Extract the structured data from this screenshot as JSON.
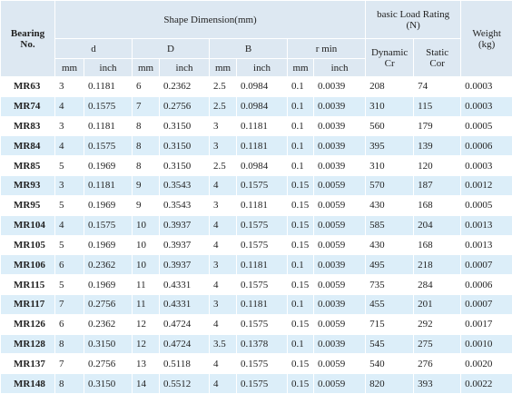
{
  "header": {
    "bearing": [
      "Bearing",
      "No."
    ],
    "shape": "Shape Dimension(mm)",
    "rating": [
      "basic Load Rating",
      "(N)"
    ],
    "weight": [
      "Weight",
      "(kg)"
    ],
    "dims": [
      "d",
      "D",
      "B",
      "r min"
    ],
    "units": [
      "mm",
      "inch"
    ],
    "dynamic": [
      "Dynamic",
      "Cr"
    ],
    "static": [
      "Static",
      "Cor"
    ]
  },
  "table": {
    "rows": [
      [
        "MR63",
        "3",
        "0.1181",
        "6",
        "0.2362",
        "2.5",
        "0.0984",
        "0.1",
        "0.0039",
        "208",
        "74",
        "0.0003"
      ],
      [
        "MR74",
        "4",
        "0.1575",
        "7",
        "0.2756",
        "2.5",
        "0.0984",
        "0.1",
        "0.0039",
        "310",
        "115",
        "0.0003"
      ],
      [
        "MR83",
        "3",
        "0.1181",
        "8",
        "0.3150",
        "3",
        "0.1181",
        "0.1",
        "0.0039",
        "560",
        "179",
        "0.0005"
      ],
      [
        "MR84",
        "4",
        "0.1575",
        "8",
        "0.3150",
        "3",
        "0.1181",
        "0.1",
        "0.0039",
        "395",
        "139",
        "0.0006"
      ],
      [
        "MR85",
        "5",
        "0.1969",
        "8",
        "0.3150",
        "2.5",
        "0.0984",
        "0.1",
        "0.0039",
        "310",
        "120",
        "0.0003"
      ],
      [
        "MR93",
        "3",
        "0.1181",
        "9",
        "0.3543",
        "4",
        "0.1575",
        "0.15",
        "0.0059",
        "570",
        "187",
        "0.0012"
      ],
      [
        "MR95",
        "5",
        "0.1969",
        "9",
        "0.3543",
        "3",
        "0.1181",
        "0.15",
        "0.0059",
        "430",
        "168",
        "0.0005"
      ],
      [
        "MR104",
        "4",
        "0.1575",
        "10",
        "0.3937",
        "4",
        "0.1575",
        "0.15",
        "0.0059",
        "585",
        "204",
        "0.0013"
      ],
      [
        "MR105",
        "5",
        "0.1969",
        "10",
        "0.3937",
        "4",
        "0.1575",
        "0.15",
        "0.0059",
        "430",
        "168",
        "0.0013"
      ],
      [
        "MR106",
        "6",
        "0.2362",
        "10",
        "0.3937",
        "3",
        "0.1181",
        "0.1",
        "0.0039",
        "495",
        "218",
        "0.0007"
      ],
      [
        "MR115",
        "5",
        "0.1969",
        "11",
        "0.4331",
        "4",
        "0.1575",
        "0.15",
        "0.0059",
        "735",
        "284",
        "0.0006"
      ],
      [
        "MR117",
        "7",
        "0.2756",
        "11",
        "0.4331",
        "3",
        "0.1181",
        "0.1",
        "0.0039",
        "455",
        "201",
        "0.0007"
      ],
      [
        "MR126",
        "6",
        "0.2362",
        "12",
        "0.4724",
        "4",
        "0.1575",
        "0.15",
        "0.0059",
        "715",
        "292",
        "0.0017"
      ],
      [
        "MR128",
        "8",
        "0.3150",
        "12",
        "0.4724",
        "3.5",
        "0.1378",
        "0.1",
        "0.0039",
        "545",
        "275",
        "0.0010"
      ],
      [
        "MR137",
        "7",
        "0.2756",
        "13",
        "0.5118",
        "4",
        "0.1575",
        "0.15",
        "0.0059",
        "540",
        "276",
        "0.0020"
      ],
      [
        "MR148",
        "8",
        "0.3150",
        "14",
        "0.5512",
        "4",
        "0.1575",
        "0.15",
        "0.0059",
        "820",
        "393",
        "0.0022"
      ]
    ]
  }
}
